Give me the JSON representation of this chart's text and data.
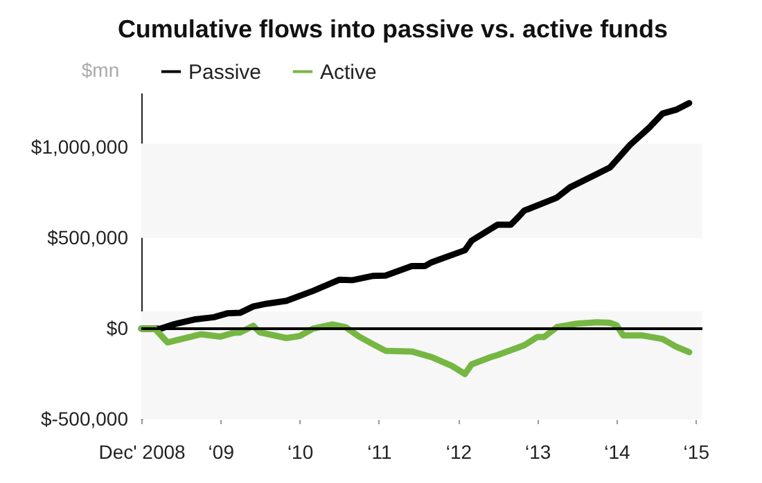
{
  "chart_data": {
    "type": "line",
    "title": "Cumulative flows into passive vs. active funds",
    "ylabel": "$mn",
    "xlim": [
      "2008-12",
      "2016-01"
    ],
    "xticks": [
      {
        "value": "2008-12",
        "label": "Dec' 2008"
      },
      {
        "value": "2009-12",
        "label": "‘09"
      },
      {
        "value": "2010-12",
        "label": "‘10"
      },
      {
        "value": "2011-12",
        "label": "‘11"
      },
      {
        "value": "2012-12",
        "label": "‘12"
      },
      {
        "value": "2013-12",
        "label": "‘13"
      },
      {
        "value": "2014-12",
        "label": "‘14"
      },
      {
        "value": "2015-12",
        "label": "‘15"
      }
    ],
    "ylim": [
      -500000,
      1300000
    ],
    "yticks": [
      {
        "value": -500000,
        "label": "$-500,000"
      },
      {
        "value": 0,
        "label": "$0"
      },
      {
        "value": 500000,
        "label": "$500,000"
      },
      {
        "value": 1000000,
        "label": "$1,000,000"
      }
    ],
    "grid": false,
    "legend": "top left",
    "marker": "none",
    "line_style": "solid",
    "ref_lines": [
      {
        "axis": "y",
        "value": 0,
        "color": "#000000"
      }
    ],
    "bands": [
      {
        "axis": "y",
        "from": 500000,
        "to": 1020000,
        "color": "#f7f7f7"
      },
      {
        "axis": "y",
        "from": -500000,
        "to": 95000,
        "color": "#f7f7f7"
      }
    ],
    "series": [
      {
        "name": "Passive",
        "color": "#000000",
        "x": [
          "2008-12",
          "2009-03",
          "2009-05",
          "2009-08",
          "2009-11",
          "2010-01",
          "2010-03",
          "2010-05",
          "2010-07",
          "2010-10",
          "2011-02",
          "2011-06",
          "2011-08",
          "2011-11",
          "2012-01",
          "2012-05",
          "2012-07",
          "2012-08",
          "2013-01",
          "2013-02",
          "2013-06",
          "2013-08",
          "2013-09",
          "2013-10",
          "2014-03",
          "2014-05",
          "2014-11",
          "2015-02",
          "2015-05",
          "2015-07",
          "2015-09",
          "2015-11"
        ],
        "values": [
          0,
          0,
          24000,
          50000,
          63000,
          84000,
          87000,
          122000,
          137000,
          153000,
          208000,
          269000,
          267000,
          290000,
          292000,
          345000,
          345000,
          366000,
          432000,
          485000,
          573000,
          573000,
          611000,
          650000,
          722000,
          779000,
          888000,
          1012000,
          1108000,
          1185000,
          1206000,
          1243000
        ]
      },
      {
        "name": "Active",
        "color": "#76b743",
        "x": [
          "2008-12",
          "2009-02",
          "2009-04",
          "2009-09",
          "2009-12",
          "2010-02",
          "2010-03",
          "2010-05",
          "2010-06",
          "2010-10",
          "2010-12",
          "2011-02",
          "2011-05",
          "2011-07",
          "2011-09",
          "2011-11",
          "2012-01",
          "2012-05",
          "2012-08",
          "2012-11",
          "2013-01",
          "2013-02",
          "2013-05",
          "2013-06",
          "2013-09",
          "2013-10",
          "2013-12",
          "2014-01",
          "2014-03",
          "2014-06",
          "2014-09",
          "2014-11",
          "2014-12",
          "2015-01",
          "2015-04",
          "2015-07",
          "2015-09",
          "2015-11"
        ],
        "values": [
          0,
          0,
          -76000,
          -31000,
          -44000,
          -23000,
          -21000,
          15000,
          -21000,
          -52000,
          -41000,
          0,
          23000,
          8000,
          -44000,
          -84000,
          -122000,
          -126000,
          -157000,
          -205000,
          -250000,
          -197000,
          -157000,
          -145000,
          -105000,
          -92000,
          -46000,
          -46000,
          8000,
          27000,
          35000,
          32000,
          19000,
          -38000,
          -38000,
          -57000,
          -99000,
          -130000
        ]
      }
    ]
  }
}
